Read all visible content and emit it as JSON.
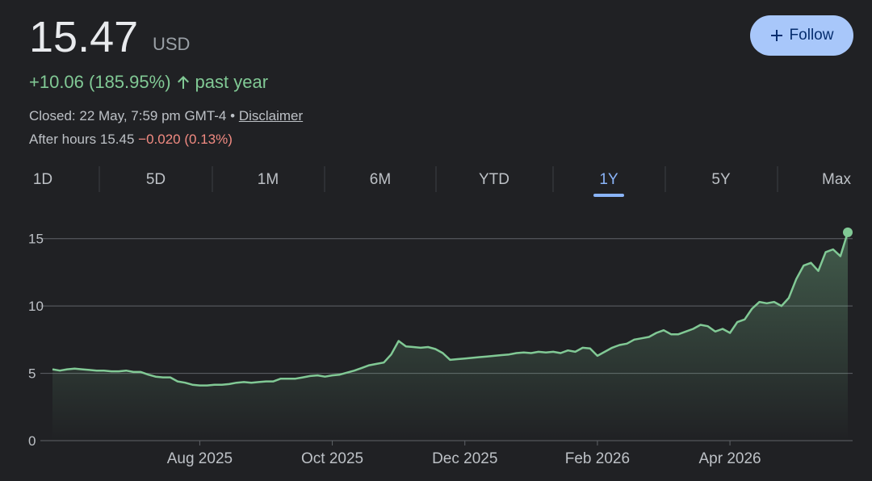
{
  "header": {
    "price": "15.47",
    "currency": "USD",
    "change": "+10.06 (185.95%)",
    "change_period": "past year",
    "closed": "Closed: 22 May, 7:59 pm GMT-4 •",
    "disclaimer": "Disclaimer",
    "after_hours": "After hours 15.45",
    "after_hours_change": "−0.020 (0.13%)",
    "follow": "Follow"
  },
  "tabs": {
    "items": [
      "1D",
      "5D",
      "1M",
      "6M",
      "YTD",
      "1Y",
      "5Y",
      "Max"
    ],
    "selected": "1Y"
  },
  "chart_data": {
    "type": "line",
    "color": "#81c995",
    "grid": true,
    "categories": [
      null,
      null,
      null,
      null,
      null,
      null,
      null,
      null,
      null,
      null,
      null,
      null,
      null,
      null,
      null,
      null,
      null,
      null,
      null,
      null,
      "Aug 2025",
      null,
      null,
      null,
      null,
      null,
      null,
      null,
      null,
      null,
      null,
      null,
      null,
      null,
      null,
      null,
      null,
      null,
      "Oct 2025",
      null,
      null,
      null,
      null,
      null,
      null,
      null,
      null,
      null,
      null,
      null,
      null,
      null,
      null,
      null,
      null,
      null,
      "Dec 2025",
      null,
      null,
      null,
      null,
      null,
      null,
      null,
      null,
      null,
      null,
      null,
      null,
      null,
      null,
      null,
      null,
      null,
      "Feb 2026",
      null,
      null,
      null,
      null,
      null,
      null,
      null,
      null,
      null,
      null,
      null,
      null,
      null,
      null,
      null,
      null,
      null,
      "Apr 2026",
      null,
      null,
      null,
      null,
      null,
      null,
      null,
      null,
      null,
      null,
      null,
      null,
      null,
      null,
      null,
      null
    ],
    "values": [
      5.3,
      5.2,
      5.3,
      5.35,
      5.3,
      5.25,
      5.2,
      5.2,
      5.15,
      5.15,
      5.2,
      5.1,
      5.1,
      4.9,
      4.75,
      4.7,
      4.7,
      4.4,
      4.3,
      4.15,
      4.1,
      4.1,
      4.15,
      4.15,
      4.2,
      4.3,
      4.35,
      4.3,
      4.35,
      4.4,
      4.4,
      4.6,
      4.6,
      4.6,
      4.7,
      4.8,
      4.85,
      4.75,
      4.85,
      4.9,
      5.05,
      5.2,
      5.4,
      5.6,
      5.7,
      5.8,
      6.4,
      7.4,
      7.0,
      6.95,
      6.9,
      6.95,
      6.8,
      6.5,
      6.0,
      6.05,
      6.1,
      6.15,
      6.2,
      6.25,
      6.3,
      6.35,
      6.4,
      6.5,
      6.55,
      6.5,
      6.6,
      6.55,
      6.6,
      6.5,
      6.7,
      6.6,
      6.9,
      6.85,
      6.3,
      6.6,
      6.9,
      7.1,
      7.2,
      7.5,
      7.6,
      7.7,
      8.0,
      8.2,
      7.9,
      7.9,
      8.1,
      8.3,
      8.6,
      8.5,
      8.1,
      8.3,
      8.0,
      8.8,
      9.0,
      9.8,
      10.3,
      10.2,
      10.3,
      10.0,
      10.6,
      12.0,
      13.0,
      13.2,
      12.6,
      14.0,
      14.2,
      13.7,
      15.47
    ],
    "ylim": [
      0,
      16
    ],
    "yticks": [
      0,
      5,
      10,
      15
    ]
  }
}
